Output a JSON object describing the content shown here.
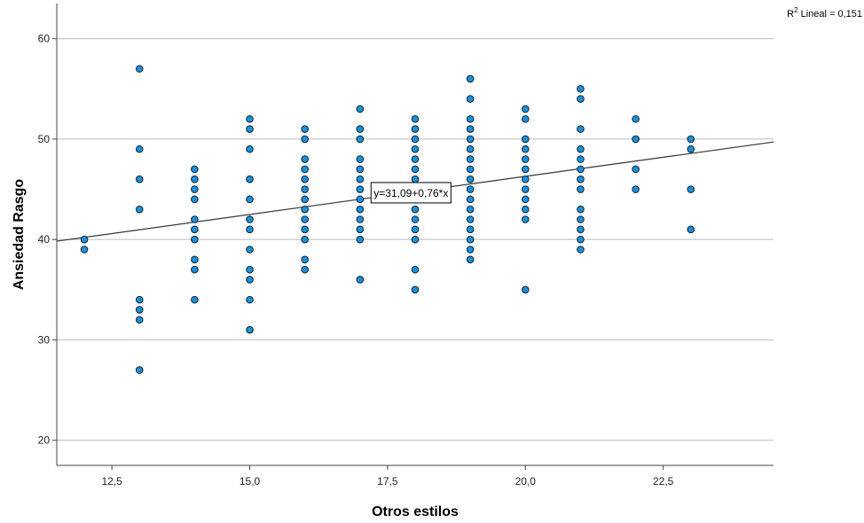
{
  "chart_data": {
    "type": "scatter",
    "xlabel": "Otros estilos",
    "ylabel": "Ansiedad Rasgo",
    "xlim": [
      11.5,
      24.5
    ],
    "ylim": [
      17.5,
      63.5
    ],
    "x_ticks": [
      12.5,
      15.0,
      17.5,
      20.0,
      22.5
    ],
    "x_tick_labels": [
      "12,5",
      "15,0",
      "17,5",
      "20,0",
      "22,5"
    ],
    "y_ticks": [
      20,
      30,
      40,
      50,
      60
    ],
    "y_tick_labels": [
      "20",
      "30",
      "40",
      "50",
      "60"
    ],
    "grid": "horizontal",
    "points": [
      [
        12,
        40
      ],
      [
        12,
        39
      ],
      [
        13,
        57
      ],
      [
        13,
        49
      ],
      [
        13,
        46
      ],
      [
        13,
        43
      ],
      [
        13,
        34
      ],
      [
        13,
        33
      ],
      [
        13,
        32
      ],
      [
        13,
        27
      ],
      [
        14,
        47
      ],
      [
        14,
        46
      ],
      [
        14,
        45
      ],
      [
        14,
        44
      ],
      [
        14,
        42
      ],
      [
        14,
        41
      ],
      [
        14,
        40
      ],
      [
        14,
        38
      ],
      [
        14,
        37
      ],
      [
        14,
        34
      ],
      [
        15,
        52
      ],
      [
        15,
        51
      ],
      [
        15,
        49
      ],
      [
        15,
        46
      ],
      [
        15,
        44
      ],
      [
        15,
        42
      ],
      [
        15,
        41
      ],
      [
        15,
        39
      ],
      [
        15,
        37
      ],
      [
        15,
        36
      ],
      [
        15,
        34
      ],
      [
        15,
        31
      ],
      [
        16,
        51
      ],
      [
        16,
        50
      ],
      [
        16,
        48
      ],
      [
        16,
        47
      ],
      [
        16,
        46
      ],
      [
        16,
        45
      ],
      [
        16,
        44
      ],
      [
        16,
        43
      ],
      [
        16,
        42
      ],
      [
        16,
        41
      ],
      [
        16,
        40
      ],
      [
        16,
        38
      ],
      [
        16,
        37
      ],
      [
        17,
        53
      ],
      [
        17,
        51
      ],
      [
        17,
        50
      ],
      [
        17,
        48
      ],
      [
        17,
        47
      ],
      [
        17,
        46
      ],
      [
        17,
        45
      ],
      [
        17,
        44
      ],
      [
        17,
        43
      ],
      [
        17,
        42
      ],
      [
        17,
        41
      ],
      [
        17,
        40
      ],
      [
        17,
        36
      ],
      [
        18,
        52
      ],
      [
        18,
        51
      ],
      [
        18,
        50
      ],
      [
        18,
        49
      ],
      [
        18,
        48
      ],
      [
        18,
        47
      ],
      [
        18,
        46
      ],
      [
        18,
        45
      ],
      [
        18,
        44
      ],
      [
        18,
        43
      ],
      [
        18,
        42
      ],
      [
        18,
        41
      ],
      [
        18,
        40
      ],
      [
        18,
        37
      ],
      [
        18,
        35
      ],
      [
        19,
        56
      ],
      [
        19,
        54
      ],
      [
        19,
        52
      ],
      [
        19,
        51
      ],
      [
        19,
        50
      ],
      [
        19,
        49
      ],
      [
        19,
        48
      ],
      [
        19,
        47
      ],
      [
        19,
        46
      ],
      [
        19,
        45
      ],
      [
        19,
        44
      ],
      [
        19,
        43
      ],
      [
        19,
        42
      ],
      [
        19,
        41
      ],
      [
        19,
        40
      ],
      [
        19,
        39
      ],
      [
        19,
        38
      ],
      [
        20,
        53
      ],
      [
        20,
        52
      ],
      [
        20,
        50
      ],
      [
        20,
        49
      ],
      [
        20,
        48
      ],
      [
        20,
        47
      ],
      [
        20,
        46
      ],
      [
        20,
        45
      ],
      [
        20,
        44
      ],
      [
        20,
        43
      ],
      [
        20,
        42
      ],
      [
        20,
        35
      ],
      [
        21,
        55
      ],
      [
        21,
        54
      ],
      [
        21,
        51
      ],
      [
        21,
        49
      ],
      [
        21,
        48
      ],
      [
        21,
        47
      ],
      [
        21,
        46
      ],
      [
        21,
        45
      ],
      [
        21,
        43
      ],
      [
        21,
        42
      ],
      [
        21,
        41
      ],
      [
        21,
        40
      ],
      [
        21,
        39
      ],
      [
        22,
        52
      ],
      [
        22,
        50
      ],
      [
        22,
        47
      ],
      [
        22,
        45
      ],
      [
        23,
        50
      ],
      [
        23,
        49
      ],
      [
        23,
        45
      ],
      [
        23,
        41
      ]
    ],
    "fit_line": {
      "intercept": 31.09,
      "slope": 0.76,
      "equation_label": "y=31,09+0,76*x",
      "equation_anchor": [
        17.2,
        44.7
      ],
      "r2_label_prefix": "R",
      "r2_label_sup": "2",
      "r2_label_suffix": " Lineal = 0,151"
    },
    "colors": {
      "point_fill": "#1f8fd6",
      "point_stroke": "#0a2233",
      "grid": "#bbbbbb",
      "axis": "#444444",
      "fit_line": "#333333"
    }
  }
}
